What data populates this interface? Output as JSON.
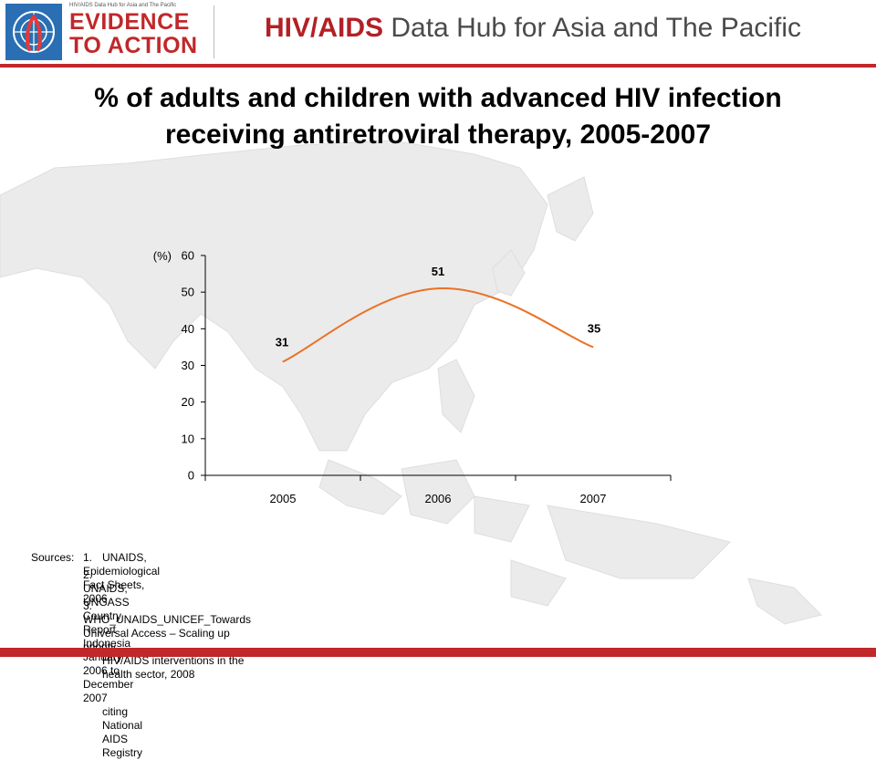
{
  "header": {
    "logo": {
      "tagline": "HIV/AIDS Data Hub for Asia and The Pacific",
      "line1": "EVIDENCE",
      "line2": "TO ACTION"
    },
    "title_bold": "HIV/AIDS",
    "title_rest": " Data Hub for Asia and The Pacific"
  },
  "slide": {
    "title": "% of adults and children with advanced HIV infection receiving antiretroviral therapy, 2005-2007"
  },
  "chart_data": {
    "type": "line",
    "categories": [
      "2005",
      "2006",
      "2007"
    ],
    "series": [
      {
        "values": [
          31,
          51,
          35
        ],
        "color": "#ea7125"
      }
    ],
    "data_labels": [
      "31",
      "51",
      "35"
    ],
    "y_unit_label": "(%)",
    "ylim": [
      0,
      60
    ],
    "y_ticks": [
      "0",
      "10",
      "20",
      "30",
      "40",
      "50",
      "60"
    ],
    "smooth": true,
    "grid": false,
    "legend": "none",
    "title": "",
    "xlabel": "",
    "ylabel": ""
  },
  "sources": {
    "label": "Sources:",
    "items": [
      {
        "num": "1.",
        "lines": [
          "UNAIDS, Epidemiological Fact Sheets, 2006"
        ]
      },
      {
        "num": "2.",
        "lines": [
          "UNAIDS, UNGASS Country Report Indonesia January 2006 to December 2007",
          "citing National AIDS Registry"
        ]
      },
      {
        "num": "3.",
        "lines": [
          "WHO_UNAIDS_UNICEF_Towards Universal Access – Scaling up priority",
          "HIV/AIDS interventions in the health sector, 2008"
        ]
      }
    ]
  },
  "colors": {
    "accent": "#c0282a",
    "title_red": "#b22025",
    "line": "#ea7125"
  }
}
